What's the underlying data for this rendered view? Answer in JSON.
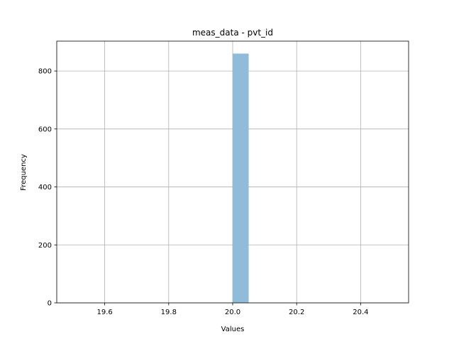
{
  "chart_data": {
    "type": "bar",
    "title": "meas_data - pvt_id",
    "xlabel": "Values",
    "ylabel": "Frequency",
    "xlim": [
      19.45,
      20.55
    ],
    "ylim": [
      0,
      903
    ],
    "xticks": [
      19.6,
      19.8,
      20.0,
      20.2,
      20.4
    ],
    "xtick_labels": [
      "19.6",
      "19.8",
      "20.0",
      "20.2",
      "20.4"
    ],
    "yticks": [
      0,
      200,
      400,
      600,
      800
    ],
    "ytick_labels": [
      "0",
      "200",
      "400",
      "600",
      "800"
    ],
    "grid": true,
    "legend": "none",
    "bins": [
      {
        "x0": 20.0,
        "x1": 20.05,
        "value": 860
      }
    ],
    "colors": {
      "bar": "#90bcd9",
      "grid": "#b0b0b0",
      "axis": "#000000"
    }
  }
}
